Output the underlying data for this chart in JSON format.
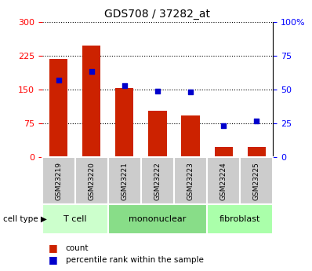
{
  "title": "GDS708 / 37282_at",
  "categories": [
    "GSM23219",
    "GSM23220",
    "GSM23221",
    "GSM23222",
    "GSM23223",
    "GSM23224",
    "GSM23225"
  ],
  "bar_values": [
    218,
    248,
    153,
    103,
    93,
    22,
    22
  ],
  "scatter_values": [
    57,
    63,
    53,
    49,
    48,
    23,
    27
  ],
  "bar_color": "#cc2200",
  "scatter_color": "#0000cc",
  "left_ylim": [
    0,
    300
  ],
  "right_ylim": [
    0,
    100
  ],
  "left_yticks": [
    0,
    75,
    150,
    225,
    300
  ],
  "right_yticks": [
    0,
    25,
    50,
    75,
    100
  ],
  "right_yticklabels": [
    "0",
    "25",
    "50",
    "75",
    "100%"
  ],
  "groups": [
    {
      "label": "T cell",
      "start": 0,
      "end": 2,
      "color": "#ccffcc"
    },
    {
      "label": "mononuclear",
      "start": 2,
      "end": 5,
      "color": "#88dd88"
    },
    {
      "label": "fibroblast",
      "start": 5,
      "end": 7,
      "color": "#aaffaa"
    }
  ],
  "group_label": "cell type",
  "legend_bar_label": "count",
  "legend_scatter_label": "percentile rank within the sample",
  "background_color": "#ffffff",
  "tick_box_color": "#cccccc"
}
